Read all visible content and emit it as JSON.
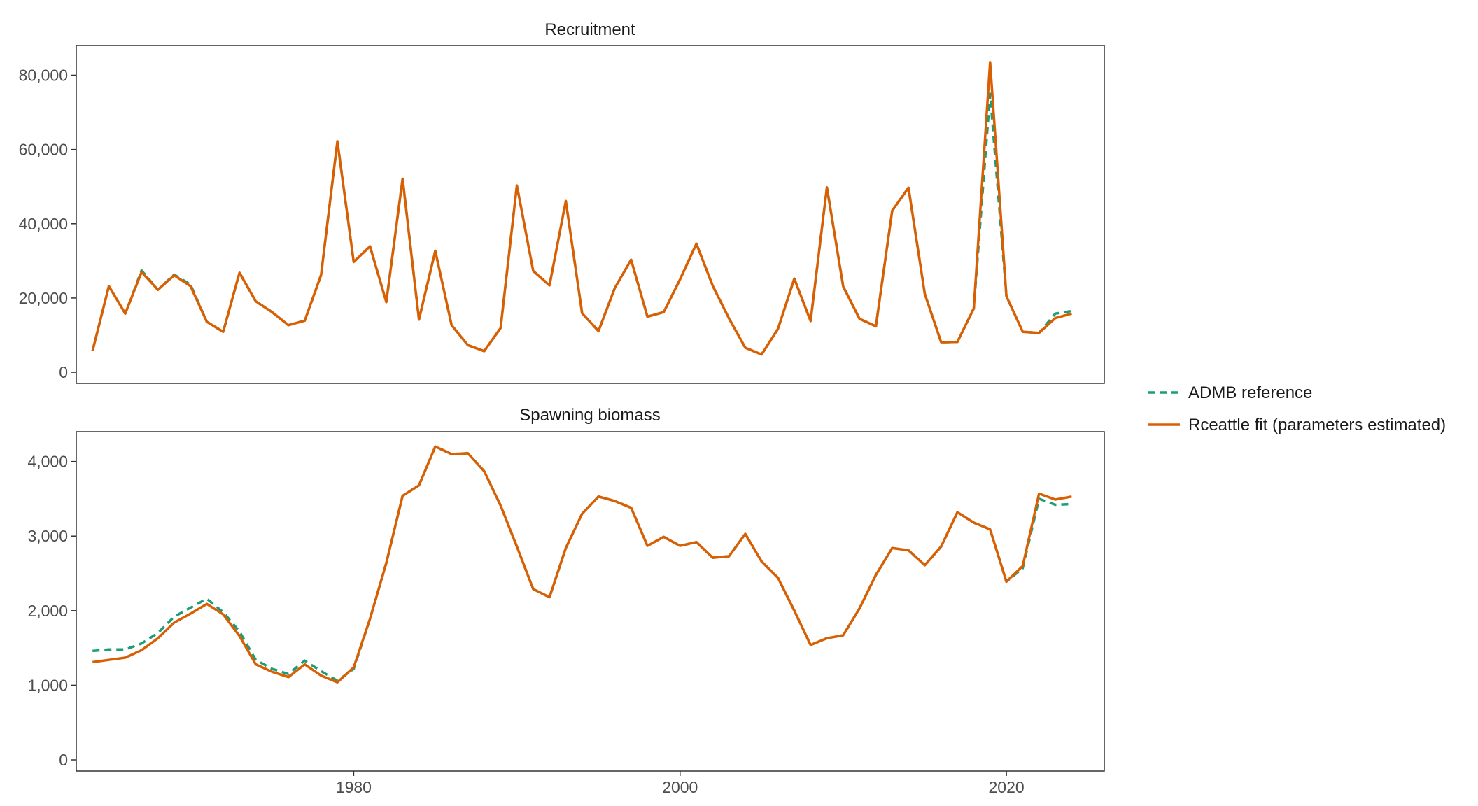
{
  "chart_data": {
    "type": "line",
    "x_ticks": [
      1980,
      2000,
      2020
    ],
    "xlim": [
      1963,
      2026
    ],
    "legend_position": "right",
    "grid": false,
    "series_styles": [
      {
        "name": "ADMB reference",
        "color": "#1b9e77",
        "dash": "dashed"
      },
      {
        "name": "Rceattle fit (parameters estimated)",
        "color": "#d95f02",
        "dash": "solid"
      }
    ],
    "panels": [
      {
        "title": "Recruitment",
        "ylim": [
          -3000,
          88000
        ],
        "y_ticks": [
          0,
          20000,
          40000,
          60000,
          80000
        ],
        "y_tick_labels": [
          "0",
          "20,000",
          "40,000",
          "60,000",
          "80,000"
        ],
        "x": [
          1964,
          1965,
          1966,
          1967,
          1968,
          1969,
          1970,
          1971,
          1972,
          1973,
          1974,
          1975,
          1976,
          1977,
          1978,
          1979,
          1980,
          1981,
          1982,
          1983,
          1984,
          1985,
          1986,
          1987,
          1988,
          1989,
          1990,
          1991,
          1992,
          1993,
          1994,
          1995,
          1996,
          1997,
          1998,
          1999,
          2000,
          2001,
          2002,
          2003,
          2004,
          2005,
          2006,
          2007,
          2008,
          2009,
          2010,
          2011,
          2012,
          2013,
          2014,
          2015,
          2016,
          2017,
          2018,
          2019,
          2020,
          2021,
          2022,
          2023,
          2024
        ],
        "series": [
          {
            "name": "ADMB reference",
            "values": [
              5800,
              23200,
              15800,
              27400,
              22200,
              26300,
              23600,
              13600,
              10900,
              26800,
              19100,
              16200,
              12700,
              13900,
              26200,
              62200,
              29700,
              33900,
              18900,
              52100,
              14200,
              32700,
              12700,
              7300,
              5700,
              11900,
              50300,
              27300,
              23400,
              46100,
              15900,
              11100,
              22700,
              30300,
              15000,
              16200,
              25000,
              34600,
              23300,
              14500,
              6600,
              4800,
              11700,
              25200,
              13800,
              49800,
              23100,
              14400,
              12400,
              43500,
              49700,
              21100,
              8100,
              8200,
              17200,
              75000,
              20500,
              10900,
              10600,
              15800,
              16500
            ]
          },
          {
            "name": "Rceattle fit (parameters estimated)",
            "values": [
              5800,
              23200,
              15800,
              27000,
              22200,
              26100,
              23200,
              13600,
              10900,
              26800,
              19100,
              16200,
              12700,
              13900,
              26200,
              62200,
              29700,
              33900,
              18900,
              52100,
              14200,
              32700,
              12700,
              7300,
              5700,
              11900,
              50300,
              27300,
              23400,
              46100,
              15900,
              11100,
              22700,
              30300,
              15000,
              16200,
              25000,
              34600,
              23300,
              14500,
              6600,
              4800,
              11700,
              25200,
              13800,
              49800,
              23100,
              14400,
              12400,
              43500,
              49700,
              21100,
              8100,
              8200,
              17200,
              83500,
              20500,
              10900,
              10600,
              14600,
              15800
            ]
          }
        ]
      },
      {
        "title": "Spawning biomass",
        "ylim": [
          -150,
          4400
        ],
        "y_ticks": [
          0,
          1000,
          2000,
          3000,
          4000
        ],
        "y_tick_labels": [
          "0",
          "1,000",
          "2,000",
          "3,000",
          "4,000"
        ],
        "x": [
          1964,
          1965,
          1966,
          1967,
          1968,
          1969,
          1970,
          1971,
          1972,
          1973,
          1974,
          1975,
          1976,
          1977,
          1978,
          1979,
          1980,
          1981,
          1982,
          1983,
          1984,
          1985,
          1986,
          1987,
          1988,
          1989,
          1990,
          1991,
          1992,
          1993,
          1994,
          1995,
          1996,
          1997,
          1998,
          1999,
          2000,
          2001,
          2002,
          2003,
          2004,
          2005,
          2006,
          2007,
          2008,
          2009,
          2010,
          2011,
          2012,
          2013,
          2014,
          2015,
          2016,
          2017,
          2018,
          2019,
          2020,
          2021,
          2022,
          2023,
          2024
        ],
        "series": [
          {
            "name": "ADMB reference",
            "values": [
              1460,
              1480,
              1480,
              1560,
              1700,
              1920,
              2040,
              2160,
              1980,
              1720,
              1340,
              1220,
              1150,
              1330,
              1190,
              1060,
              1220,
              1890,
              2640,
              3540,
              3680,
              4200,
              4100,
              4110,
              3870,
              3410,
              2860,
              2290,
              2180,
              2840,
              3300,
              3530,
              3470,
              3380,
              2870,
              2990,
              2870,
              2920,
              2710,
              2730,
              3030,
              2660,
              2440,
              2000,
              1540,
              1630,
              1670,
              2030,
              2480,
              2840,
              2810,
              2610,
              2860,
              3320,
              3180,
              3090,
              2390,
              2570,
              3500,
              3420,
              3430
            ]
          },
          {
            "name": "Rceattle fit (parameters estimated)",
            "values": [
              1310,
              1340,
              1370,
              1470,
              1630,
              1840,
              1960,
              2090,
              1950,
              1660,
              1280,
              1180,
              1110,
              1280,
              1130,
              1040,
              1240,
              1890,
              2640,
              3540,
              3680,
              4200,
              4100,
              4110,
              3870,
              3410,
              2860,
              2290,
              2180,
              2840,
              3300,
              3530,
              3470,
              3380,
              2870,
              2990,
              2870,
              2920,
              2710,
              2730,
              3030,
              2660,
              2440,
              2000,
              1540,
              1630,
              1670,
              2030,
              2480,
              2840,
              2810,
              2610,
              2860,
              3320,
              3180,
              3090,
              2390,
              2600,
              3570,
              3490,
              3530
            ]
          }
        ]
      }
    ]
  }
}
